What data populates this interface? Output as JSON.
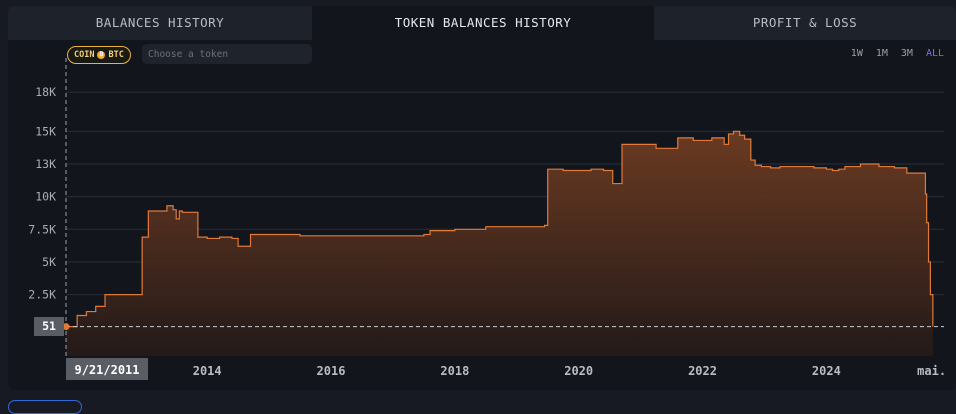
{
  "tabs": [
    {
      "label": "BALANCES HISTORY"
    },
    {
      "label": "TOKEN BALANCES HISTORY"
    },
    {
      "label": "PROFIT & LOSS"
    }
  ],
  "controls": {
    "coin_label": "COIN",
    "coin_symbol": "BTC",
    "token_placeholder": "Choose a token",
    "ranges": [
      "1W",
      "1M",
      "3M",
      "ALL"
    ],
    "active_range": "ALL"
  },
  "colors": {
    "line": "#e07a3a",
    "fill_top": "#6f3c22",
    "fill_bottom": "#241a18",
    "accent": "#7b6cf0",
    "badge": "#e9b43c"
  },
  "chart_data": {
    "type": "area",
    "y_ticks": [
      "18K",
      "15K",
      "13K",
      "10K",
      "7.5K",
      "5K",
      "2.5K"
    ],
    "y_tick_values": [
      18000,
      15000,
      12500,
      10000,
      7500,
      5000,
      2500
    ],
    "ylim": [
      -2200,
      20000
    ],
    "x_ticks": [
      "2014",
      "2016",
      "2018",
      "2020",
      "2022",
      "2024",
      "mai."
    ],
    "x_tick_values": [
      2014,
      2016,
      2018,
      2020,
      2022,
      2024,
      2025.7
    ],
    "xlim": [
      2011.72,
      2025.9
    ],
    "crosshair": {
      "x_label": "9/21/2011",
      "x_value": 2011.72,
      "y_label": "51",
      "y_value": 51
    },
    "series": [
      {
        "x": [
          2011.72,
          2011.9,
          2012.05,
          2012.2,
          2012.35,
          2012.55,
          2012.9,
          2012.95,
          2013.05,
          2013.2,
          2013.35,
          2013.45,
          2013.5,
          2013.55,
          2013.6,
          2013.8,
          2013.85,
          2014.0,
          2014.2,
          2014.4,
          2014.45,
          2014.5,
          2014.7,
          2015.0,
          2015.5,
          2016.0,
          2016.5,
          2017.0,
          2017.3,
          2017.5,
          2017.6,
          2018.0,
          2018.5,
          2019.0,
          2019.45,
          2019.5,
          2019.75,
          2020.0,
          2020.2,
          2020.4,
          2020.55,
          2020.6,
          2020.7,
          2020.95,
          2021.25,
          2021.35,
          2021.6,
          2021.85,
          2022.0,
          2022.15,
          2022.35,
          2022.42,
          2022.5,
          2022.6,
          2022.68,
          2022.78,
          2022.85,
          2022.95,
          2023.1,
          2023.25,
          2023.4,
          2023.55,
          2023.8,
          2024.0,
          2024.1,
          2024.2,
          2024.3,
          2024.55,
          2024.85,
          2025.1,
          2025.3,
          2025.55,
          2025.6,
          2025.62,
          2025.65,
          2025.68,
          2025.72
        ],
        "y": [
          51,
          900,
          1200,
          1600,
          2500,
          2500,
          2500,
          6900,
          8900,
          8900,
          9300,
          9000,
          8300,
          8900,
          8800,
          8800,
          6900,
          6800,
          6900,
          6800,
          6800,
          6200,
          7100,
          7100,
          7000,
          7000,
          7000,
          7000,
          7000,
          7100,
          7400,
          7500,
          7700,
          7700,
          7800,
          12100,
          12000,
          12000,
          12100,
          12000,
          11000,
          11000,
          14000,
          14000,
          13700,
          13700,
          14500,
          14300,
          14300,
          14500,
          14000,
          14800,
          15000,
          14700,
          14400,
          12800,
          12400,
          12300,
          12200,
          12300,
          12300,
          12300,
          12200,
          12100,
          12000,
          12100,
          12300,
          12500,
          12300,
          12200,
          11800,
          11800,
          10200,
          8000,
          5000,
          2500,
          51
        ]
      }
    ]
  }
}
